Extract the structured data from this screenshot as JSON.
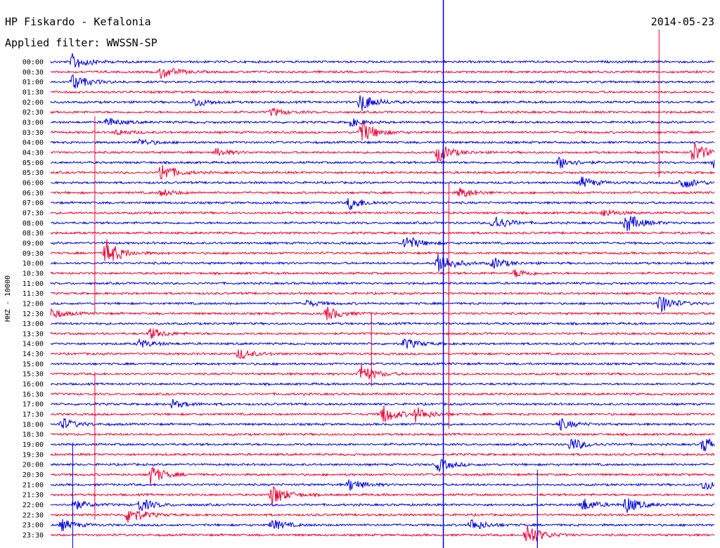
{
  "header": {
    "station": "HP Fiskardo - Kefalonia",
    "date": "2014-05-23",
    "filter_label": "Applied filter: WWSSN-SP"
  },
  "chart_data": {
    "type": "line",
    "title": "HP Fiskardo - Kefalonia",
    "subtitle": "Applied filter: WWSSN-SP",
    "ylabel": "HHZ - 10000",
    "rows": [
      "00:00",
      "00:30",
      "01:00",
      "01:30",
      "02:00",
      "02:30",
      "03:00",
      "03:30",
      "04:00",
      "04:30",
      "05:00",
      "05:30",
      "06:00",
      "06:30",
      "07:00",
      "07:30",
      "08:00",
      "08:30",
      "09:00",
      "09:30",
      "10:00",
      "10:30",
      "11:00",
      "11:30",
      "12:00",
      "12:30",
      "13:00",
      "13:30",
      "14:00",
      "14:30",
      "15:00",
      "15:30",
      "16:00",
      "16:30",
      "17:00",
      "17:30",
      "18:00",
      "18:30",
      "19:00",
      "19:30",
      "20:00",
      "20:30",
      "21:00",
      "21:30",
      "22:00",
      "22:30",
      "23:00",
      "23:30"
    ],
    "trace_minutes": 30,
    "colors": {
      "even": "#0000dd",
      "odd": "#ee0033"
    },
    "events": [
      {
        "row": 0,
        "minute": 2,
        "amp": 12
      },
      {
        "row": 1,
        "minute": 10,
        "amp": 10
      },
      {
        "row": 2,
        "minute": 2,
        "amp": 12
      },
      {
        "row": 4,
        "minute": 13,
        "amp": 7
      },
      {
        "row": 4,
        "minute": 28,
        "amp": 14
      },
      {
        "row": 5,
        "minute": 20,
        "amp": 6
      },
      {
        "row": 6,
        "minute": 5,
        "amp": 7
      },
      {
        "row": 6,
        "minute": 27,
        "amp": 6
      },
      {
        "row": 7,
        "minute": 28,
        "amp": 18
      },
      {
        "row": 7,
        "minute": 6,
        "amp": 4
      },
      {
        "row": 8,
        "minute": 8,
        "amp": 5
      },
      {
        "row": 9,
        "minute": 15,
        "amp": 6
      },
      {
        "row": 9,
        "minute": 35,
        "amp": 14
      },
      {
        "row": 9,
        "minute": 58,
        "amp": 16
      },
      {
        "row": 10,
        "minute": 46,
        "amp": 9
      },
      {
        "row": 10,
        "minute": 60,
        "amp": 10
      },
      {
        "row": 11,
        "minute": 10,
        "amp": 14
      },
      {
        "row": 12,
        "minute": 48,
        "amp": 8
      },
      {
        "row": 12,
        "minute": 57,
        "amp": 10
      },
      {
        "row": 13,
        "minute": 37,
        "amp": 8
      },
      {
        "row": 13,
        "minute": 10,
        "amp": 5
      },
      {
        "row": 14,
        "minute": 27,
        "amp": 10
      },
      {
        "row": 15,
        "minute": 50,
        "amp": 6
      },
      {
        "row": 16,
        "minute": 40,
        "amp": 12
      },
      {
        "row": 16,
        "minute": 52,
        "amp": 14
      },
      {
        "row": 18,
        "minute": 32,
        "amp": 12
      },
      {
        "row": 19,
        "minute": 5,
        "amp": 20
      },
      {
        "row": 20,
        "minute": 35,
        "amp": 18
      },
      {
        "row": 20,
        "minute": 40,
        "amp": 8
      },
      {
        "row": 21,
        "minute": 42,
        "amp": 6
      },
      {
        "row": 24,
        "minute": 55,
        "amp": 14
      },
      {
        "row": 24,
        "minute": 23,
        "amp": 5
      },
      {
        "row": 25,
        "minute": 25,
        "amp": 10
      },
      {
        "row": 25,
        "minute": 0,
        "amp": 8
      },
      {
        "row": 27,
        "minute": 9,
        "amp": 8
      },
      {
        "row": 28,
        "minute": 8,
        "amp": 6
      },
      {
        "row": 28,
        "minute": 32,
        "amp": 8
      },
      {
        "row": 29,
        "minute": 17,
        "amp": 8
      },
      {
        "row": 31,
        "minute": 28,
        "amp": 14
      },
      {
        "row": 34,
        "minute": 11,
        "amp": 6
      },
      {
        "row": 35,
        "minute": 30,
        "amp": 14
      },
      {
        "row": 35,
        "minute": 33,
        "amp": 10
      },
      {
        "row": 35,
        "minute": 63,
        "amp": 8
      },
      {
        "row": 36,
        "minute": 1,
        "amp": 9
      },
      {
        "row": 36,
        "minute": 46,
        "amp": 8
      },
      {
        "row": 38,
        "minute": 47,
        "amp": 10
      },
      {
        "row": 38,
        "minute": 59,
        "amp": 12
      },
      {
        "row": 40,
        "minute": 35,
        "amp": 9
      },
      {
        "row": 41,
        "minute": 9,
        "amp": 14
      },
      {
        "row": 42,
        "minute": 27,
        "amp": 9
      },
      {
        "row": 42,
        "minute": 59,
        "amp": 8
      },
      {
        "row": 43,
        "minute": 20,
        "amp": 16
      },
      {
        "row": 44,
        "minute": 2,
        "amp": 8
      },
      {
        "row": 44,
        "minute": 8,
        "amp": 10
      },
      {
        "row": 44,
        "minute": 48,
        "amp": 10
      },
      {
        "row": 44,
        "minute": 52,
        "amp": 12
      },
      {
        "row": 45,
        "minute": 7,
        "amp": 14
      },
      {
        "row": 46,
        "minute": 1,
        "amp": 8
      },
      {
        "row": 46,
        "minute": 20,
        "amp": 8
      },
      {
        "row": 46,
        "minute": 38,
        "amp": 9
      },
      {
        "row": 47,
        "minute": 43,
        "amp": 18
      }
    ],
    "spikes": [
      {
        "row": 0,
        "minute": 35.5,
        "amp": 80
      },
      {
        "row": 1,
        "minute": 55,
        "amp": 60
      },
      {
        "row": 6,
        "minute": 35.5,
        "amp": 140
      },
      {
        "row": 11,
        "minute": 4,
        "amp": 80
      },
      {
        "row": 19,
        "minute": 36,
        "amp": 100
      },
      {
        "row": 20,
        "minute": 35.5,
        "amp": 90
      },
      {
        "row": 25,
        "minute": 36,
        "amp": 60
      },
      {
        "row": 27,
        "minute": 29,
        "amp": 30
      },
      {
        "row": 35,
        "minute": 4,
        "amp": 60
      },
      {
        "row": 42,
        "minute": 2,
        "amp": 60
      },
      {
        "row": 44,
        "minute": 44,
        "amp": 50
      },
      {
        "row": 46,
        "minute": 44,
        "amp": 40
      }
    ]
  }
}
